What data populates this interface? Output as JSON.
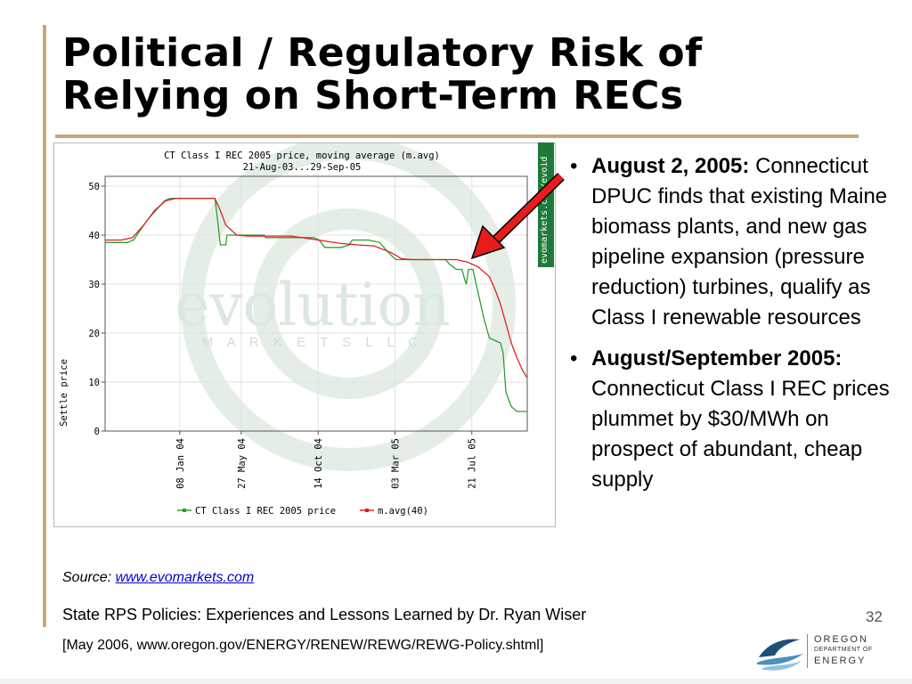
{
  "slide": {
    "title_line1": "Political / Regulatory Risk of",
    "title_line2": "Relying on Short-Term RECs",
    "page_number": "32"
  },
  "chart_tag": "evomarkets.com/evoid",
  "watermark": {
    "brand": "evolution",
    "sub": "M A R K E T S   L L C"
  },
  "chart_data": {
    "type": "line",
    "title": "CT Class I REC 2005 price, moving average (m.avg)",
    "subtitle": "21-Aug-03...29-Sep-05",
    "ylabel": "Settle price",
    "xlabel": "",
    "ylim": [
      0,
      52
    ],
    "yticks": [
      0,
      10,
      20,
      30,
      40,
      50
    ],
    "xticks": [
      {
        "x": 136,
        "label": "08 Jan 04"
      },
      {
        "x": 248,
        "label": "27 May 04"
      },
      {
        "x": 388,
        "label": "14 Oct 04"
      },
      {
        "x": 528,
        "label": "03 Mar 05"
      },
      {
        "x": 668,
        "label": "21 Jul 05"
      }
    ],
    "xlim": [
      0,
      769
    ],
    "grid": true,
    "legend_position": "bottom",
    "series": [
      {
        "name": "CT Class I REC 2005  price",
        "color": "#2e9e2e",
        "points": [
          [
            0,
            38.5
          ],
          [
            40,
            38.5
          ],
          [
            52,
            39
          ],
          [
            64,
            41
          ],
          [
            80,
            43.5
          ],
          [
            96,
            45.5
          ],
          [
            108,
            47
          ],
          [
            118,
            47.5
          ],
          [
            200,
            47.5
          ],
          [
            205,
            43
          ],
          [
            210,
            38
          ],
          [
            220,
            38
          ],
          [
            222,
            40
          ],
          [
            290,
            40
          ],
          [
            292,
            39.5
          ],
          [
            320,
            39.5
          ],
          [
            360,
            39.5
          ],
          [
            380,
            39.5
          ],
          [
            390,
            39
          ],
          [
            400,
            37.5
          ],
          [
            430,
            37.5
          ],
          [
            445,
            38
          ],
          [
            450,
            39
          ],
          [
            480,
            39
          ],
          [
            500,
            38.5
          ],
          [
            520,
            36
          ],
          [
            530,
            35
          ],
          [
            620,
            35
          ],
          [
            628,
            34
          ],
          [
            640,
            33
          ],
          [
            650,
            33
          ],
          [
            655,
            31
          ],
          [
            658,
            30
          ],
          [
            662,
            33
          ],
          [
            670,
            33
          ],
          [
            680,
            28
          ],
          [
            690,
            23
          ],
          [
            700,
            19
          ],
          [
            720,
            18
          ],
          [
            725,
            16
          ],
          [
            730,
            8
          ],
          [
            740,
            5
          ],
          [
            750,
            4
          ],
          [
            768,
            4
          ]
        ]
      },
      {
        "name": "m.avg(40)",
        "color": "#e02020",
        "points": [
          [
            0,
            39
          ],
          [
            30,
            39
          ],
          [
            50,
            39.5
          ],
          [
            70,
            42
          ],
          [
            90,
            45
          ],
          [
            110,
            47
          ],
          [
            130,
            47.5
          ],
          [
            200,
            47.5
          ],
          [
            210,
            45
          ],
          [
            220,
            42
          ],
          [
            240,
            40
          ],
          [
            260,
            39.8
          ],
          [
            300,
            39.8
          ],
          [
            340,
            39.8
          ],
          [
            400,
            38.8
          ],
          [
            430,
            38.3
          ],
          [
            460,
            38
          ],
          [
            490,
            37.8
          ],
          [
            520,
            36.5
          ],
          [
            540,
            35.2
          ],
          [
            560,
            35
          ],
          [
            600,
            35
          ],
          [
            640,
            35
          ],
          [
            660,
            34.5
          ],
          [
            680,
            33.5
          ],
          [
            700,
            31.5
          ],
          [
            710,
            29
          ],
          [
            720,
            26
          ],
          [
            730,
            22
          ],
          [
            740,
            18
          ],
          [
            750,
            15
          ],
          [
            760,
            12.5
          ],
          [
            768,
            11
          ]
        ]
      }
    ]
  },
  "bullets": [
    {
      "bold": "August 2, 2005:",
      "text": "Connecticut DPUC finds that existing Maine biomass plants, and new gas pipeline expansion (pressure reduction) turbines, qualify as Class I renewable resources"
    },
    {
      "bold": "August/September 2005:",
      "text": " Connecticut Class I REC prices plummet by $30/MWh on prospect of abundant, cheap supply"
    }
  ],
  "bullet_symbol": "•",
  "source": {
    "label": "Source: ",
    "link": "www.evomarkets.com"
  },
  "footer": {
    "line1": "State RPS Policies: Experiences and Lessons Learned by Dr. Ryan Wiser",
    "line2": "[May 2006, www.oregon.gov/ENERGY/RENEW/REWG/REWG-Policy.shtml]"
  },
  "logo": {
    "line1": "OREGON",
    "line2": "DEPARTMENT OF",
    "line3": "ENERGY"
  },
  "colors": {
    "accent_rule": "#c8a878",
    "arrow": "#e81c1c",
    "tag_green": "#1d7a3a",
    "link": "#0000cc"
  }
}
